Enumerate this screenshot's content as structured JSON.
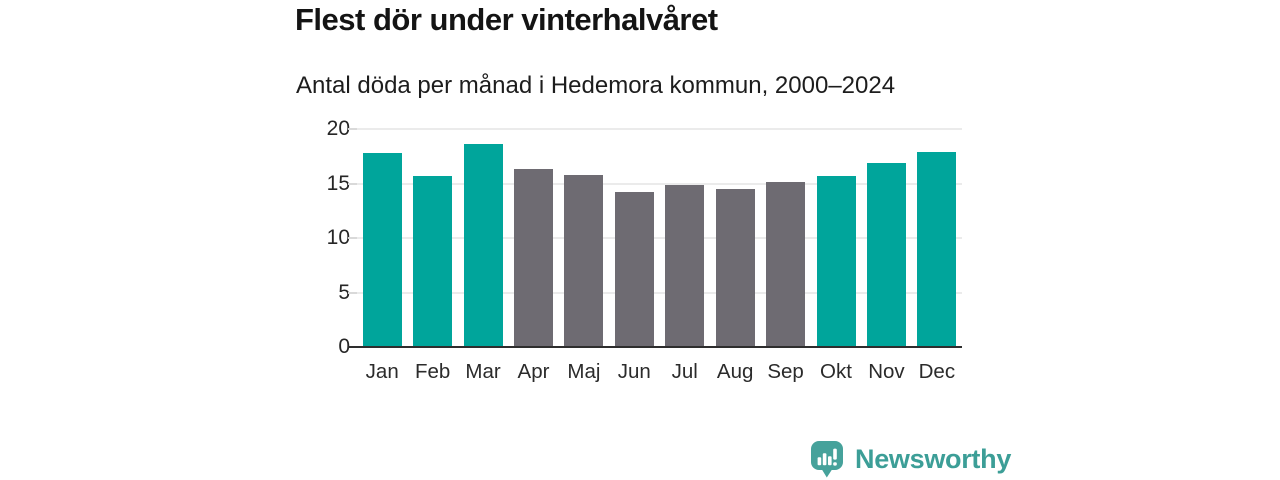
{
  "header": {
    "title": "Flest dör under vinterhalvåret",
    "subtitle": "Antal döda per månad i Hedemora kommun, 2000–2024"
  },
  "chart_data": {
    "type": "bar",
    "title": "Flest dör under vinterhalvåret",
    "subtitle": "Antal döda per månad i Hedemora kommun, 2000–2024",
    "categories": [
      "Jan",
      "Feb",
      "Mar",
      "Apr",
      "Maj",
      "Jun",
      "Jul",
      "Aug",
      "Sep",
      "Okt",
      "Nov",
      "Dec"
    ],
    "values": [
      17.8,
      15.7,
      18.6,
      16.3,
      15.8,
      14.2,
      14.9,
      14.5,
      15.1,
      15.7,
      16.9,
      17.9
    ],
    "bar_roles": [
      "winter",
      "winter",
      "winter",
      "summer",
      "summer",
      "summer",
      "summer",
      "summer",
      "summer",
      "winter",
      "winter",
      "winter"
    ],
    "xlabel": "",
    "ylabel": "",
    "ylim": [
      0,
      20
    ],
    "yticks": [
      0,
      5,
      10,
      15,
      20
    ],
    "grid": true,
    "legend": "none"
  },
  "palette": {
    "bar_winter": "#00a59b",
    "bar_summer": "#6e6b72",
    "gridline": "#ebebeb",
    "axis_line": "#2e2e2e",
    "logo_icon": "#46a29b",
    "logo_text": "#3c9e97"
  },
  "footer": {
    "brand": "Newsworthy"
  }
}
